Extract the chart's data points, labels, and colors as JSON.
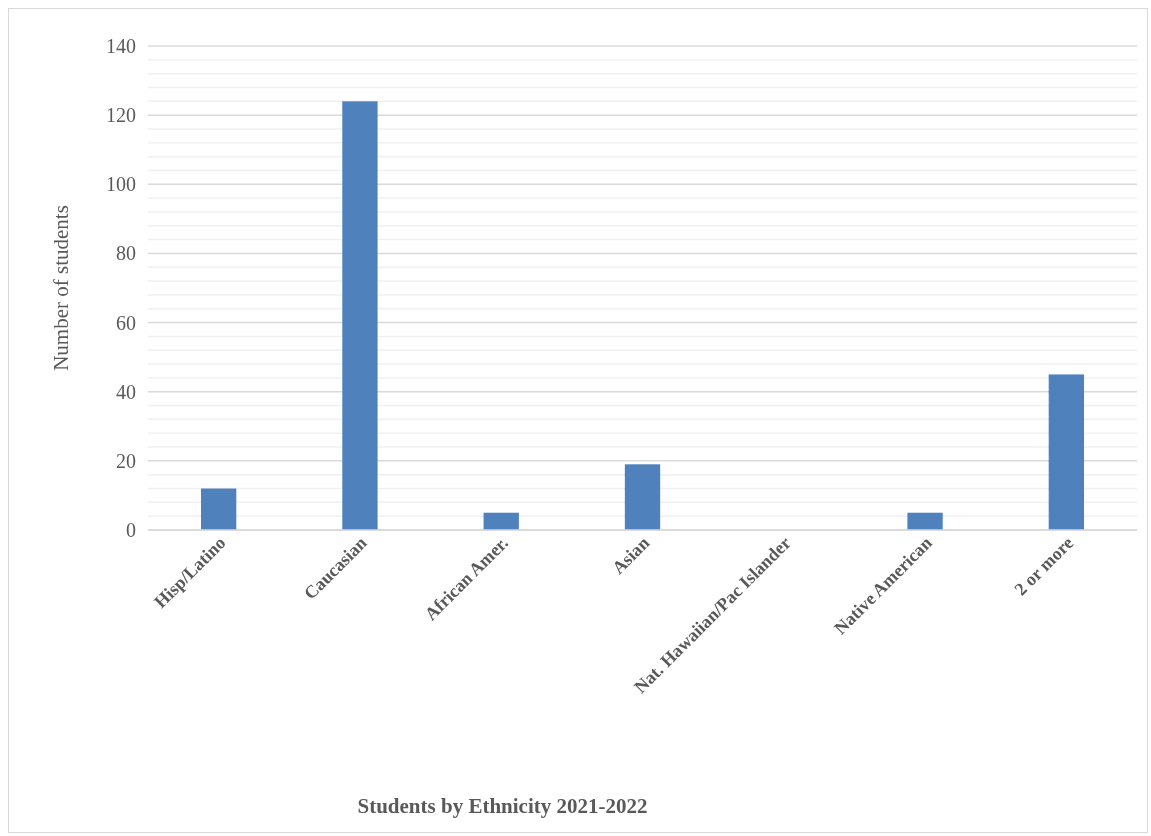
{
  "chart_data": {
    "type": "bar",
    "title": "Students by Ethnicity 2021-2022",
    "ylabel": "Number of students",
    "categories": [
      "Hisp/Latino",
      "Caucasian",
      "African Amer.",
      "Asian",
      "Nat. Hawaiian/Pac Islander",
      "Native American",
      "2 or more"
    ],
    "values": [
      12,
      124,
      5,
      19,
      0,
      5,
      45
    ],
    "color": "#4f81bd",
    "ylim": [
      0,
      140
    ],
    "yticks": [
      0,
      20,
      40,
      60,
      80,
      100,
      120,
      140
    ],
    "grid": true
  }
}
